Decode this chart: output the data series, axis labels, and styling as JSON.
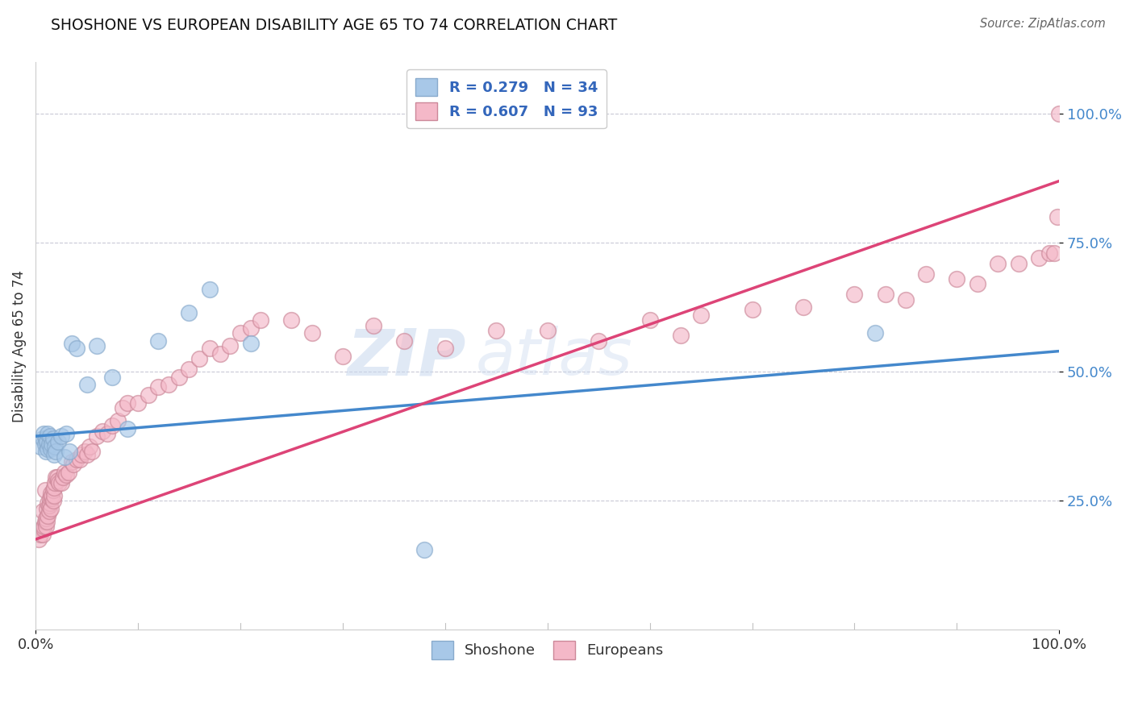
{
  "title": "SHOSHONE VS EUROPEAN DISABILITY AGE 65 TO 74 CORRELATION CHART",
  "source_text": "Source: ZipAtlas.com",
  "ylabel": "Disability Age 65 to 74",
  "xlim": [
    0.0,
    1.0
  ],
  "ylim": [
    0.0,
    1.1
  ],
  "legend": {
    "shoshone_r": "0.279",
    "shoshone_n": "34",
    "european_r": "0.607",
    "european_n": "93"
  },
  "watermark_zip": "ZIP",
  "watermark_atlas": "atlas",
  "shoshone_color": "#a8c8e8",
  "european_color": "#f4b8c8",
  "shoshone_line_color": "#4488cc",
  "european_line_color": "#dd4477",
  "shoshone_edge_color": "#88aacc",
  "european_edge_color": "#cc8899",
  "shoshone_x": [
    0.005,
    0.007,
    0.008,
    0.009,
    0.01,
    0.01,
    0.011,
    0.012,
    0.012,
    0.013,
    0.014,
    0.015,
    0.016,
    0.017,
    0.018,
    0.019,
    0.02,
    0.022,
    0.025,
    0.028,
    0.03,
    0.033,
    0.035,
    0.04,
    0.05,
    0.06,
    0.075,
    0.09,
    0.12,
    0.15,
    0.17,
    0.21,
    0.38,
    0.82
  ],
  "shoshone_y": [
    0.355,
    0.37,
    0.38,
    0.36,
    0.37,
    0.345,
    0.365,
    0.38,
    0.35,
    0.36,
    0.375,
    0.35,
    0.36,
    0.37,
    0.34,
    0.355,
    0.345,
    0.365,
    0.375,
    0.335,
    0.38,
    0.345,
    0.555,
    0.545,
    0.475,
    0.55,
    0.49,
    0.39,
    0.56,
    0.615,
    0.66,
    0.555,
    0.155,
    0.575
  ],
  "european_x": [
    0.003,
    0.005,
    0.006,
    0.007,
    0.007,
    0.008,
    0.008,
    0.009,
    0.009,
    0.01,
    0.01,
    0.011,
    0.011,
    0.012,
    0.012,
    0.013,
    0.013,
    0.014,
    0.014,
    0.015,
    0.015,
    0.016,
    0.016,
    0.017,
    0.017,
    0.018,
    0.018,
    0.019,
    0.02,
    0.021,
    0.022,
    0.023,
    0.025,
    0.027,
    0.028,
    0.03,
    0.032,
    0.035,
    0.037,
    0.04,
    0.043,
    0.045,
    0.048,
    0.05,
    0.053,
    0.055,
    0.06,
    0.065,
    0.07,
    0.075,
    0.08,
    0.085,
    0.09,
    0.1,
    0.11,
    0.12,
    0.13,
    0.14,
    0.15,
    0.16,
    0.17,
    0.18,
    0.19,
    0.2,
    0.21,
    0.22,
    0.25,
    0.27,
    0.3,
    0.33,
    0.36,
    0.4,
    0.45,
    0.5,
    0.55,
    0.6,
    0.63,
    0.65,
    0.7,
    0.75,
    0.8,
    0.83,
    0.85,
    0.87,
    0.9,
    0.92,
    0.94,
    0.96,
    0.98,
    0.99,
    0.995,
    0.998,
    1.0
  ],
  "european_y": [
    0.175,
    0.185,
    0.195,
    0.185,
    0.23,
    0.195,
    0.2,
    0.21,
    0.27,
    0.2,
    0.215,
    0.21,
    0.235,
    0.22,
    0.245,
    0.23,
    0.24,
    0.245,
    0.255,
    0.265,
    0.235,
    0.255,
    0.26,
    0.25,
    0.27,
    0.26,
    0.275,
    0.285,
    0.295,
    0.295,
    0.29,
    0.285,
    0.285,
    0.295,
    0.305,
    0.3,
    0.305,
    0.325,
    0.32,
    0.33,
    0.33,
    0.34,
    0.345,
    0.34,
    0.355,
    0.345,
    0.375,
    0.385,
    0.38,
    0.395,
    0.405,
    0.43,
    0.44,
    0.44,
    0.455,
    0.47,
    0.475,
    0.49,
    0.505,
    0.525,
    0.545,
    0.535,
    0.55,
    0.575,
    0.585,
    0.6,
    0.6,
    0.575,
    0.53,
    0.59,
    0.56,
    0.545,
    0.58,
    0.58,
    0.56,
    0.6,
    0.57,
    0.61,
    0.62,
    0.625,
    0.65,
    0.65,
    0.64,
    0.69,
    0.68,
    0.67,
    0.71,
    0.71,
    0.72,
    0.73,
    0.73,
    0.8,
    1.0
  ],
  "shoshone_line": {
    "x0": 0.0,
    "y0": 0.375,
    "x1": 1.0,
    "y1": 0.54
  },
  "european_line": {
    "x0": 0.0,
    "y0": 0.175,
    "x1": 1.0,
    "y1": 0.87
  }
}
